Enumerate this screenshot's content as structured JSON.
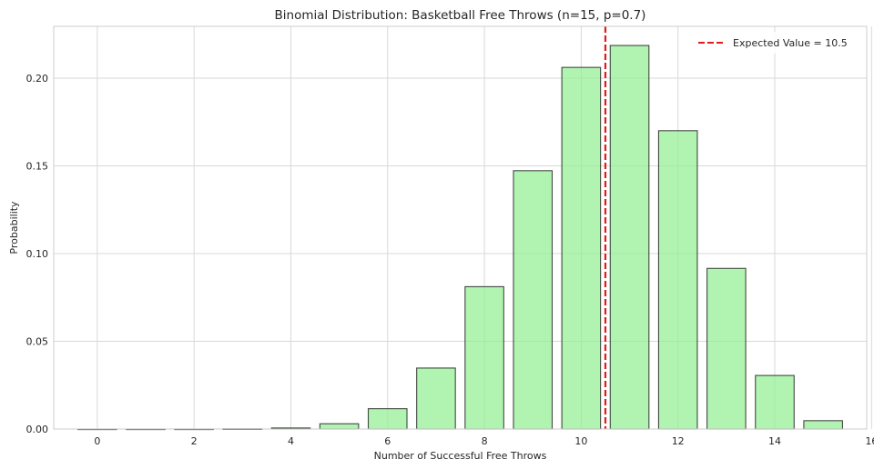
{
  "chart_data": {
    "type": "bar",
    "title": "Binomial Distribution: Basketball Free Throws (n=15, p=0.7)",
    "xlabel": "Number of Successful Free Throws",
    "ylabel": "Probability",
    "x": [
      0,
      1,
      2,
      3,
      4,
      5,
      6,
      7,
      8,
      9,
      10,
      11,
      12,
      13,
      14,
      15
    ],
    "values": [
      1.43e-08,
      5.022e-07,
      8.2859e-06,
      8.3701e-05,
      0.0005858974,
      0.0029976178,
      0.0115840297,
      0.0347520891,
      0.0811265638,
      0.1472315046,
      0.2061241065,
      0.218606143,
      0.1700269963,
      0.091552998,
      0.030517666,
      0.0047475258
    ],
    "xlim": [
      -0.9,
      15.9
    ],
    "ylim": [
      0,
      0.2295
    ],
    "xticks": [
      0,
      2,
      4,
      6,
      8,
      10,
      12,
      14,
      16
    ],
    "yticks": [
      0.0,
      0.05,
      0.1,
      0.15,
      0.2
    ],
    "ytick_labels": [
      "0.00",
      "0.05",
      "0.10",
      "0.15",
      "0.20"
    ],
    "grid": true,
    "bar_color": "#90ee90",
    "bar_edge_color": "#000000",
    "reference_line": {
      "x": 10.5,
      "label": "Expected Value = 10.5",
      "color": "#e31a1c",
      "style": "dashed"
    },
    "legend_placement": "top-right"
  }
}
